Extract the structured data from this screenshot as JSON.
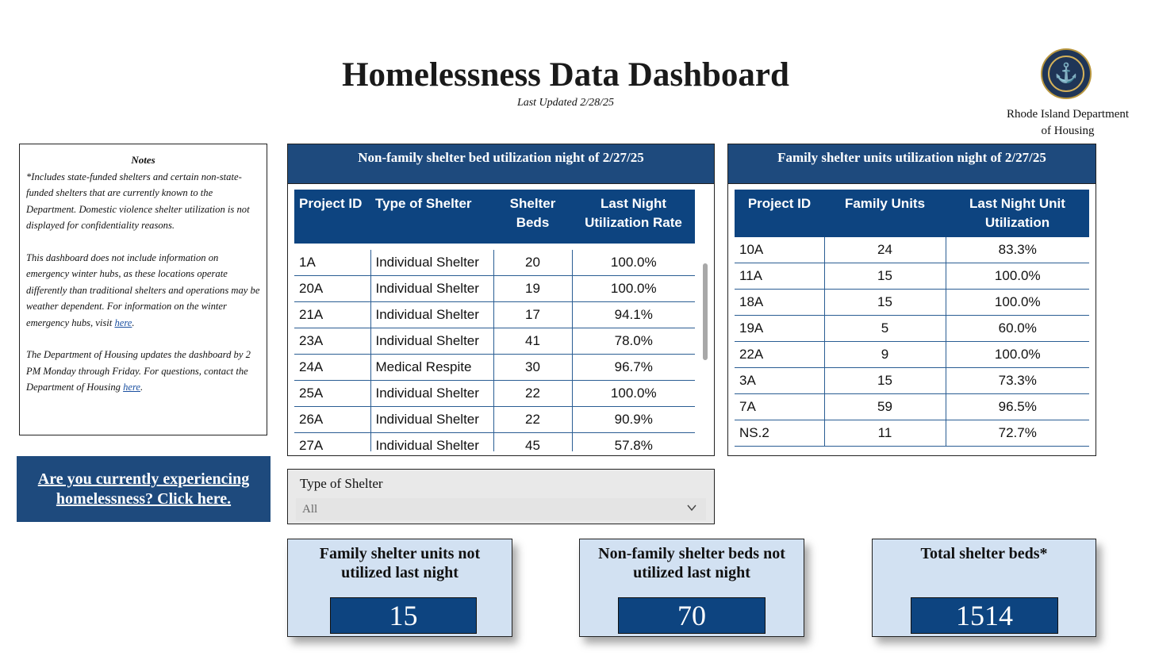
{
  "header": {
    "title": "Homelessness Data Dashboard",
    "last_updated": "Last Updated 2/28/25",
    "dept_line1": "Rhode Island Department",
    "dept_line2": "of Housing",
    "seal_icon": "anchor-seal-icon"
  },
  "notes": {
    "title": "Notes",
    "p1": "*Includes state-funded shelters and certain non-state-funded shelters that are currently known to the Department. Domestic violence shelter utilization is not displayed for confidentiality reasons.",
    "p2_text": "This dashboard does not include information on emergency winter hubs, as these locations operate differently than traditional shelters and operations may be weather dependent. For information on the winter emergency hubs, visit ",
    "p2_link": "here",
    "p3_text": "The Department of Housing updates the dashboard by 2 PM Monday through Friday. For questions, contact the Department of Housing ",
    "p3_link": "here",
    "period": "."
  },
  "help_button": {
    "line1": "Are you currently experiencing",
    "line2": "homelessness? Click here."
  },
  "nonfamily": {
    "title": "Non-family shelter bed utilization night of 2/27/25",
    "columns": [
      "Project ID",
      "Type of Shelter",
      "Shelter Beds",
      "Last Night Utilization Rate"
    ],
    "rows": [
      [
        "1A",
        "Individual Shelter",
        "20",
        "100.0%"
      ],
      [
        "20A",
        "Individual Shelter",
        "19",
        "100.0%"
      ],
      [
        "21A",
        "Individual Shelter",
        "17",
        "94.1%"
      ],
      [
        "23A",
        "Individual Shelter",
        "41",
        "78.0%"
      ],
      [
        "24A",
        "Medical Respite",
        "30",
        "96.7%"
      ],
      [
        "25A",
        "Individual Shelter",
        "22",
        "100.0%"
      ],
      [
        "26A",
        "Individual Shelter",
        "22",
        "90.9%"
      ],
      [
        "27A",
        "Individual Shelter",
        "45",
        "57.8%"
      ]
    ]
  },
  "family": {
    "title": "Family shelter units utilization night of 2/27/25",
    "columns": [
      "Project ID",
      "Family Units",
      "Last Night Unit Utilization"
    ],
    "rows": [
      [
        "10A",
        "24",
        "83.3%"
      ],
      [
        "11A",
        "15",
        "100.0%"
      ],
      [
        "18A",
        "15",
        "100.0%"
      ],
      [
        "19A",
        "5",
        "60.0%"
      ],
      [
        "22A",
        "9",
        "100.0%"
      ],
      [
        "3A",
        "15",
        "73.3%"
      ],
      [
        "7A",
        "59",
        "96.5%"
      ],
      [
        "NS.2",
        "11",
        "72.7%"
      ]
    ]
  },
  "filter": {
    "label": "Type of Shelter",
    "value": "All"
  },
  "kpis": {
    "family_unused_title": "Family shelter units not utilized last night",
    "family_unused_value": "15",
    "nonfamily_unused_title": "Non-family shelter beds not utilized last night",
    "nonfamily_unused_value": "70",
    "total_beds_title": "Total shelter beds*",
    "total_beds_value": "1514"
  },
  "colors": {
    "header_blue": "#1e4a7d",
    "table_header_blue": "#0d4480",
    "kpi_card_bg": "#d2e1f2"
  }
}
